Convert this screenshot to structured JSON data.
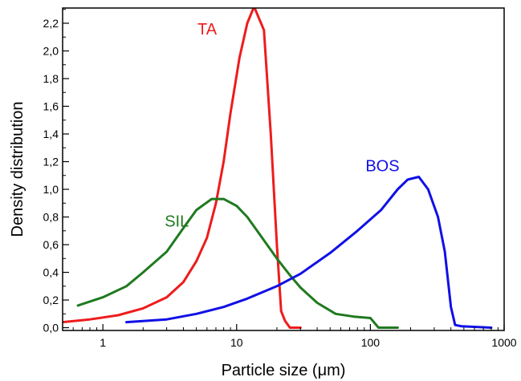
{
  "chart_data": {
    "type": "line",
    "title": "",
    "xlabel": "Particle size (μm)",
    "ylabel": "Density distribution",
    "xscale": "log",
    "xlim": [
      0.5,
      1000
    ],
    "ylim": [
      -0.02,
      2.31
    ],
    "grid": false,
    "legend": "none",
    "x_ticks": [
      {
        "value": 1,
        "label": "1"
      },
      {
        "value": 10,
        "label": "10"
      },
      {
        "value": 100,
        "label": "100"
      },
      {
        "value": 1000,
        "label": "1000"
      }
    ],
    "y_ticks": [
      {
        "value": 0.0,
        "label": "0,0"
      },
      {
        "value": 0.2,
        "label": "0,2"
      },
      {
        "value": 0.4,
        "label": "0,4"
      },
      {
        "value": 0.6,
        "label": "0,6"
      },
      {
        "value": 0.8,
        "label": "0,8"
      },
      {
        "value": 1.0,
        "label": "1,0"
      },
      {
        "value": 1.2,
        "label": "1,2"
      },
      {
        "value": 1.4,
        "label": "1,4"
      },
      {
        "value": 1.6,
        "label": "1,6"
      },
      {
        "value": 1.8,
        "label": "1,8"
      },
      {
        "value": 2.0,
        "label": "2,0"
      },
      {
        "value": 2.2,
        "label": "2,2"
      }
    ],
    "series": [
      {
        "name": "TA",
        "color": "#ee1c1c",
        "label_at": {
          "x": 5.1,
          "y": 2.12
        },
        "points": [
          [
            0.5,
            0.04
          ],
          [
            0.8,
            0.06
          ],
          [
            1.3,
            0.09
          ],
          [
            2.0,
            0.14
          ],
          [
            3.0,
            0.22
          ],
          [
            4.0,
            0.33
          ],
          [
            5.0,
            0.48
          ],
          [
            6.0,
            0.65
          ],
          [
            7.0,
            0.9
          ],
          [
            8.0,
            1.2
          ],
          [
            9.0,
            1.55
          ],
          [
            10.5,
            1.95
          ],
          [
            12.0,
            2.2
          ],
          [
            13.5,
            2.32
          ],
          [
            16.0,
            2.15
          ],
          [
            18.0,
            1.4
          ],
          [
            20.0,
            0.6
          ],
          [
            21.5,
            0.12
          ],
          [
            23.0,
            0.05
          ],
          [
            25.0,
            0.0
          ],
          [
            30.0,
            0.0
          ]
        ]
      },
      {
        "name": "SIL",
        "color": "#1f7a1f",
        "label_at": {
          "x": 2.9,
          "y": 0.73
        },
        "points": [
          [
            0.65,
            0.16
          ],
          [
            1.0,
            0.22
          ],
          [
            1.5,
            0.3
          ],
          [
            2.0,
            0.4
          ],
          [
            3.0,
            0.55
          ],
          [
            4.0,
            0.72
          ],
          [
            5.0,
            0.85
          ],
          [
            6.5,
            0.93
          ],
          [
            8.0,
            0.93
          ],
          [
            10.0,
            0.88
          ],
          [
            12.0,
            0.8
          ],
          [
            15.0,
            0.67
          ],
          [
            20.0,
            0.5
          ],
          [
            25.0,
            0.38
          ],
          [
            30.0,
            0.29
          ],
          [
            40.0,
            0.18
          ],
          [
            55.0,
            0.1
          ],
          [
            75.0,
            0.08
          ],
          [
            100.0,
            0.07
          ],
          [
            115.0,
            0.0
          ],
          [
            160.0,
            0.0
          ]
        ]
      },
      {
        "name": "BOS",
        "color": "#1010e6",
        "label_at": {
          "x": 92,
          "y": 1.13
        },
        "points": [
          [
            1.5,
            0.04
          ],
          [
            3.0,
            0.06
          ],
          [
            5.0,
            0.1
          ],
          [
            8.0,
            0.15
          ],
          [
            12.0,
            0.21
          ],
          [
            20.0,
            0.3
          ],
          [
            30.0,
            0.39
          ],
          [
            50.0,
            0.54
          ],
          [
            80.0,
            0.7
          ],
          [
            120.0,
            0.85
          ],
          [
            160.0,
            1.0
          ],
          [
            190.0,
            1.07
          ],
          [
            230.0,
            1.09
          ],
          [
            270.0,
            1.0
          ],
          [
            320.0,
            0.8
          ],
          [
            360.0,
            0.55
          ],
          [
            400.0,
            0.15
          ],
          [
            430.0,
            0.02
          ],
          [
            480.0,
            0.01
          ],
          [
            800.0,
            0.0
          ]
        ]
      }
    ]
  }
}
